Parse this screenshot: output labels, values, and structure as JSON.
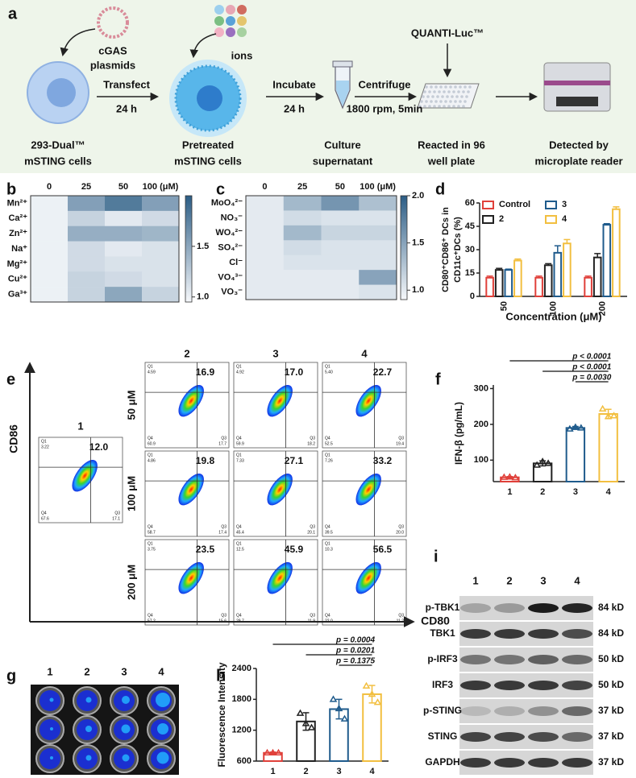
{
  "panel_labels": [
    "a",
    "b",
    "c",
    "d",
    "e",
    "f",
    "g",
    "h",
    "i"
  ],
  "schematic": {
    "plasmid_label": [
      "cGAS",
      "plasmids"
    ],
    "ions_label": "ions",
    "reagent": "QUANTI-Luc™",
    "steps": [
      {
        "text": "Transfect",
        "time": "24 h"
      },
      {
        "text": "Incubate",
        "time": "24 h"
      },
      {
        "text": "Centrifuge",
        "time": "1800 rpm, 5min"
      }
    ],
    "stages": [
      [
        "293-Dual™",
        "mSTING cells"
      ],
      [
        "Pretreated",
        "mSTING cells"
      ],
      [
        "Culture",
        "supernatant"
      ],
      [
        "Reacted in 96",
        "well plate"
      ],
      [
        "Detected by",
        "microplate reader"
      ]
    ]
  },
  "chart_data": [
    {
      "type": "heatmap",
      "x": [
        "0",
        "25",
        "50",
        "100 (μM)"
      ],
      "y": [
        "Mn²⁺",
        "Ca²⁺",
        "Zn²⁺",
        "Na⁺",
        "Mg²⁺",
        "Cu²⁺",
        "Ga³⁺"
      ],
      "values": [
        [
          1.0,
          1.55,
          1.8,
          1.55
        ],
        [
          1.0,
          1.2,
          1.05,
          1.15
        ],
        [
          1.0,
          1.45,
          1.45,
          1.4
        ],
        [
          1.0,
          1.15,
          1.05,
          1.1
        ],
        [
          1.0,
          1.15,
          1.1,
          1.1
        ],
        [
          1.0,
          1.2,
          1.15,
          1.1
        ],
        [
          1.0,
          1.2,
          1.5,
          1.2
        ]
      ],
      "clim": [
        0.95,
        2.0
      ],
      "cticks": [
        {
          "value": 1,
          "label": "1.0"
        },
        {
          "value": 1.5,
          "label": "1.5"
        }
      ],
      "colors": [
        "#f6f8fb",
        "#2c5d85"
      ]
    },
    {
      "type": "heatmap",
      "x": [
        "0",
        "25",
        "50",
        "100 (μM)"
      ],
      "y": [
        "MoO₄²⁻",
        "NO₃⁻",
        "WO₄²⁻",
        "SO₄²⁻",
        "Cl⁻",
        "VO₄³⁻",
        "VO₃⁻"
      ],
      "values": [
        [
          1.0,
          1.35,
          1.6,
          1.3
        ],
        [
          1.0,
          1.1,
          1.05,
          1.05
        ],
        [
          1.0,
          1.35,
          1.15,
          1.15
        ],
        [
          1.0,
          1.1,
          1.05,
          1.05
        ],
        [
          1.0,
          1.05,
          1.05,
          1.05
        ],
        [
          1.0,
          1.0,
          1.0,
          1.5
        ],
        [
          1.0,
          1.0,
          1.0,
          1.05
        ]
      ],
      "clim": [
        0.9,
        2.0
      ],
      "cticks": [
        {
          "value": 1,
          "label": "1.0"
        },
        {
          "value": 1.5,
          "label": "1.5"
        },
        {
          "value": 2,
          "label": "2.0"
        }
      ],
      "colors": [
        "#f6f8fb",
        "#2c5d85"
      ]
    },
    {
      "type": "bar",
      "categories": [
        "50",
        "100",
        "200"
      ],
      "series": [
        {
          "name": "Control",
          "color": "#e0403a",
          "values": [
            12,
            12,
            12
          ],
          "errors": [
            1,
            1,
            1
          ]
        },
        {
          "name": "2",
          "color": "#222222",
          "values": [
            17,
            20,
            25
          ],
          "errors": [
            1,
            1,
            2.5
          ]
        },
        {
          "name": "3",
          "color": "#1f5b8c",
          "values": [
            17,
            28,
            46
          ],
          "errors": [
            0.5,
            4.5,
            0.7
          ]
        },
        {
          "name": "4",
          "color": "#f2bf40",
          "values": [
            23,
            34,
            56
          ],
          "errors": [
            1,
            2.5,
            1.5
          ]
        }
      ],
      "ylim": [
        0,
        60
      ],
      "yticks": [
        0,
        15,
        30,
        45,
        60
      ],
      "y_label": [
        "CD80⁺CD86⁺ DCs in",
        "CD11c⁺DCs (%)"
      ],
      "x_label": "Concentration (μM)"
    },
    {
      "type": "bar",
      "categories": [
        "1",
        "2",
        "3",
        "4"
      ],
      "values": [
        52,
        91,
        190,
        229
      ],
      "errors": [
        2,
        7,
        4,
        13
      ],
      "points": [
        [
          52,
          53,
          51
        ],
        [
          86,
          96,
          91
        ],
        [
          187,
          192,
          190
        ],
        [
          243,
          222,
          224
        ]
      ],
      "colors": [
        "#e0403a",
        "#222222",
        "#1f5b8c",
        "#f2bf40"
      ],
      "ylim": [
        40,
        310
      ],
      "yticks": [
        100,
        200,
        300
      ],
      "y_label": "IFN-β (pg/mL)",
      "annotations": [
        "p < 0.0001",
        "p < 0.0001",
        "p = 0.0030"
      ]
    },
    {
      "type": "bar",
      "categories": [
        "1",
        "2",
        "3",
        "4"
      ],
      "values": [
        760,
        1370,
        1610,
        1900
      ],
      "errors": [
        15,
        170,
        190,
        170
      ],
      "points": [
        [
          760,
          760,
          760
        ],
        [
          1530,
          1330,
          1250
        ],
        [
          1800,
          1620,
          1420
        ],
        [
          2060,
          1900,
          1740
        ]
      ],
      "colors": [
        "#e0403a",
        "#222222",
        "#1f5b8c",
        "#f2bf40"
      ],
      "ylim": [
        600,
        2400
      ],
      "yticks": [
        600,
        1200,
        1800,
        2400
      ],
      "y_label": "Fluorescence Intensity",
      "annotations": [
        "p = 0.0004",
        "p = 0.0201",
        "p = 0.1375"
      ]
    }
  ],
  "flow": {
    "columns": [
      "2",
      "3",
      "4"
    ],
    "rows": [
      "50 μM",
      "100 μM",
      "200 μM"
    ],
    "control_label": "1",
    "x_label": "CD80",
    "y_label": "CD86",
    "quadrant_names": [
      "Q1",
      "Q4",
      "Q3"
    ],
    "control": {
      "main": "12.0",
      "quadrants": [
        "3.22",
        "67.6",
        "17.1"
      ]
    },
    "plots": [
      [
        {
          "main": "16.9",
          "quadrants": [
            "4.59",
            "60.9",
            "17.7"
          ]
        },
        {
          "main": "17.0",
          "quadrants": [
            "4.92",
            "59.9",
            "18.2"
          ]
        },
        {
          "main": "22.7",
          "quadrants": [
            "5.40",
            "52.5",
            "19.4"
          ]
        }
      ],
      [
        {
          "main": "19.8",
          "quadrants": [
            "4.86",
            "58.7",
            "17.4"
          ]
        },
        {
          "main": "27.1",
          "quadrants": [
            "7.33",
            "45.4",
            "20.1"
          ]
        },
        {
          "main": "33.2",
          "quadrants": [
            "7.26",
            "39.5",
            "20.0"
          ]
        }
      ],
      [
        {
          "main": "23.5",
          "quadrants": [
            "3.75",
            "57.2",
            "15.6"
          ]
        },
        {
          "main": "45.9",
          "quadrants": [
            "12.5",
            "29.7",
            "11.9"
          ]
        },
        {
          "main": "56.5",
          "quadrants": [
            "10.3",
            "22.0",
            "11.2"
          ]
        }
      ]
    ]
  },
  "luminescence": {
    "columns": [
      "1",
      "2",
      "3",
      "4"
    ]
  },
  "western": {
    "columns": [
      "1",
      "2",
      "3",
      "4"
    ],
    "rows": [
      {
        "name": "p-TBK1",
        "size": "84 kD"
      },
      {
        "name": "TBK1",
        "size": "84 kD"
      },
      {
        "name": "p-IRF3",
        "size": "50 kD"
      },
      {
        "name": "IRF3",
        "size": "50 kD"
      },
      {
        "name": "p-STING",
        "size": "37 kD"
      },
      {
        "name": "STING",
        "size": "37 kD"
      },
      {
        "name": "GAPDH",
        "size": "37 kD"
      }
    ]
  }
}
